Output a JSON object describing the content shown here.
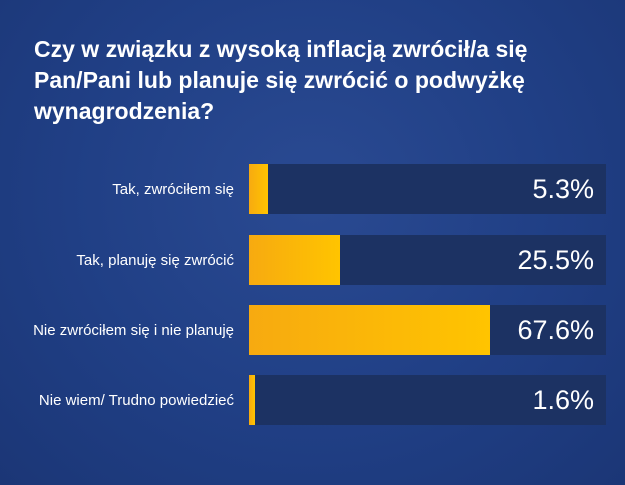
{
  "chart_data": {
    "type": "bar",
    "orientation": "horizontal",
    "title_lines": [
      "Czy w związku z wysoką inflacją zwrócił/a się",
      "Pan/Pani lub planuje się zwrócić o podwyżkę",
      "wynagrodzenia?"
    ],
    "categories": [
      "Tak, zwróciłem się",
      "Tak, planuję się zwrócić",
      "Nie zwróciłem się i nie planuję",
      "Nie wiem/ Trudno powiedzieć"
    ],
    "values": [
      5.3,
      25.5,
      67.6,
      1.6
    ],
    "value_labels": [
      "5.3%",
      "25.5%",
      "67.6%",
      "1.6%"
    ],
    "xlim": [
      0,
      100
    ],
    "unit": "%",
    "colors": {
      "bar": "#ffc400",
      "track": "#1c3263",
      "text": "#ffffff"
    }
  }
}
